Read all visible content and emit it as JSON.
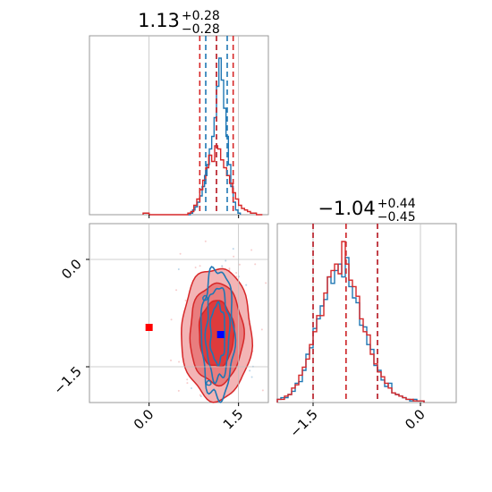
{
  "chart_data": {
    "type": "corner",
    "parameters": [
      {
        "title_value": "1.13",
        "title_upper": "+0.28",
        "title_lower": "−0.28",
        "range": [
          -1.0,
          2.0
        ],
        "ticks": [
          {
            "value": 0.0,
            "label": "0.0"
          },
          {
            "value": 1.5,
            "label": "1.5"
          }
        ]
      },
      {
        "title_value": "−1.04",
        "title_upper": "+0.44",
        "title_lower": "−0.45",
        "range": [
          -2.0,
          0.5
        ],
        "ticks": [
          {
            "value": -1.5,
            "label": "−1.5"
          },
          {
            "value": 0.0,
            "label": "0.0"
          }
        ]
      }
    ],
    "grid": true,
    "series": [
      {
        "color": "#1f77b4",
        "param1_quantiles": [
          0.95,
          1.13,
          1.31
        ],
        "param2_quantiles": [
          -1.5,
          -1.04,
          -0.6
        ],
        "param1_hist": {
          "bins": [
            0.65,
            0.69,
            0.73,
            0.77,
            0.81,
            0.85,
            0.89,
            0.93,
            0.97,
            1.01,
            1.05,
            1.09,
            1.13,
            1.17,
            1.21,
            1.25,
            1.29,
            1.33,
            1.37,
            1.41,
            1.45,
            1.49,
            1.53
          ],
          "counts": [
            0.0,
            0.01,
            0.03,
            0.05,
            0.08,
            0.12,
            0.18,
            0.25,
            0.32,
            0.42,
            0.5,
            0.62,
            0.82,
            1.0,
            0.86,
            0.68,
            0.5,
            0.32,
            0.18,
            0.08,
            0.03,
            0.01
          ]
        },
        "param2_hist": {
          "bins": [
            -2.0,
            -1.95,
            -1.9,
            -1.85,
            -1.8,
            -1.75,
            -1.7,
            -1.65,
            -1.6,
            -1.55,
            -1.5,
            -1.45,
            -1.4,
            -1.35,
            -1.3,
            -1.25,
            -1.2,
            -1.15,
            -1.1,
            -1.05,
            -1.0,
            -0.95,
            -0.9,
            -0.85,
            -0.8,
            -0.75,
            -0.7,
            -0.65,
            -0.6,
            -0.55,
            -0.5,
            -0.45,
            -0.4,
            -0.35,
            -0.3,
            -0.25,
            -0.2,
            -0.15,
            -0.1,
            -0.05,
            0.0,
            0.05
          ],
          "counts": [
            0.02,
            0.03,
            0.03,
            0.05,
            0.07,
            0.12,
            0.13,
            0.2,
            0.3,
            0.34,
            0.46,
            0.52,
            0.6,
            0.64,
            0.78,
            0.74,
            0.82,
            0.86,
            0.78,
            0.9,
            0.72,
            0.65,
            0.62,
            0.48,
            0.47,
            0.36,
            0.33,
            0.23,
            0.2,
            0.14,
            0.1,
            0.12,
            0.06,
            0.05,
            0.04,
            0.03,
            0.02,
            0.01,
            0.02,
            0.01,
            0.01
          ]
        },
        "marker": [
          1.2,
          -1.05
        ]
      },
      {
        "color": "#d62728",
        "param1_quantiles": [
          0.85,
          1.13,
          1.41
        ],
        "param2_quantiles": [
          -1.5,
          -1.04,
          -0.6
        ],
        "param1_hist": {
          "bins": [
            -0.1,
            -0.05,
            0.0,
            0.05,
            0.1,
            0.15,
            0.2,
            0.25,
            0.3,
            0.35,
            0.4,
            0.45,
            0.5,
            0.55,
            0.6,
            0.65,
            0.7,
            0.75,
            0.8,
            0.85,
            0.9,
            0.95,
            1.0,
            1.05,
            1.1,
            1.15,
            1.2,
            1.25,
            1.3,
            1.35,
            1.4,
            1.45,
            1.5,
            1.55,
            1.6,
            1.65,
            1.7,
            1.75,
            1.8,
            1.85,
            1.9
          ],
          "counts": [
            0.01,
            0.01,
            0.0,
            0.0,
            0.0,
            0.0,
            0.0,
            0.0,
            0.0,
            0.0,
            0.0,
            0.0,
            0.0,
            0.0,
            0.0,
            0.01,
            0.02,
            0.06,
            0.1,
            0.16,
            0.22,
            0.3,
            0.38,
            0.34,
            0.44,
            0.42,
            0.35,
            0.3,
            0.25,
            0.2,
            0.14,
            0.1,
            0.06,
            0.04,
            0.03,
            0.02,
            0.01,
            0.01,
            0.0,
            0.0
          ]
        },
        "param2_hist": {
          "bins": [
            -2.0,
            -1.95,
            -1.9,
            -1.85,
            -1.8,
            -1.75,
            -1.7,
            -1.65,
            -1.6,
            -1.55,
            -1.5,
            -1.45,
            -1.4,
            -1.35,
            -1.3,
            -1.25,
            -1.2,
            -1.15,
            -1.1,
            -1.05,
            -1.0,
            -0.95,
            -0.9,
            -0.85,
            -0.8,
            -0.75,
            -0.7,
            -0.65,
            -0.6,
            -0.55,
            -0.5,
            -0.45,
            -0.4,
            -0.35,
            -0.3,
            -0.25,
            -0.2,
            -0.15,
            -0.1,
            -0.05,
            0.0,
            0.05
          ],
          "counts": [
            0.02,
            0.02,
            0.04,
            0.05,
            0.09,
            0.11,
            0.17,
            0.22,
            0.27,
            0.36,
            0.44,
            0.54,
            0.54,
            0.68,
            0.78,
            0.82,
            0.86,
            0.8,
            1.0,
            0.86,
            0.76,
            0.72,
            0.66,
            0.52,
            0.44,
            0.42,
            0.3,
            0.24,
            0.19,
            0.16,
            0.12,
            0.09,
            0.06,
            0.05,
            0.04,
            0.03,
            0.02,
            0.02,
            0.01,
            0.01,
            0.01
          ]
        },
        "marker": [
          0.0,
          -0.95
        ],
        "density": {
          "center": [
            1.13,
            -1.04
          ],
          "sigma": [
            0.28,
            0.44
          ]
        }
      }
    ]
  },
  "colors": {
    "blue": "#1f77b4",
    "red": "#d62728",
    "red_fill_1": "#f3b4b5",
    "red_fill_2": "#e97d7e",
    "red_fill_3": "#de3b3c",
    "grid": "#bfbfbf",
    "axis": "#999999",
    "marker_blue": "#0000ff",
    "marker_red": "#ff0000"
  }
}
